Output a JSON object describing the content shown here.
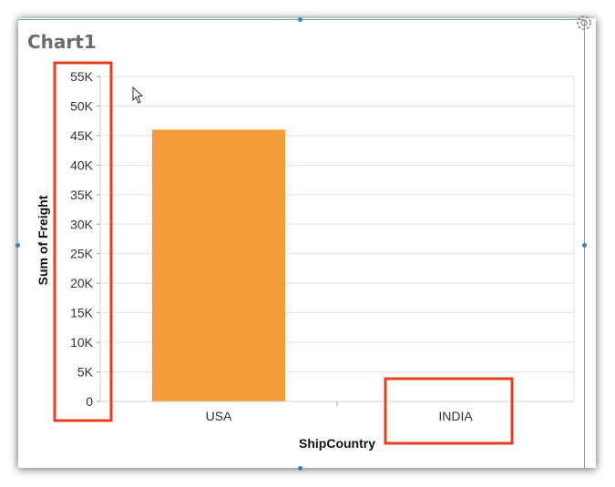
{
  "chart_data": {
    "type": "bar",
    "title": "Chart1",
    "categories": [
      "USA",
      "INDIA"
    ],
    "values": [
      46000,
      0
    ],
    "xlabel": "ShipCountry",
    "ylabel": "Sum of Freight",
    "ylim": [
      0,
      55000
    ],
    "yticks": [
      {
        "value": 0,
        "label": "0"
      },
      {
        "value": 5000,
        "label": "5K"
      },
      {
        "value": 10000,
        "label": "10K"
      },
      {
        "value": 15000,
        "label": "15K"
      },
      {
        "value": 20000,
        "label": "20K"
      },
      {
        "value": 25000,
        "label": "25K"
      },
      {
        "value": 30000,
        "label": "30K"
      },
      {
        "value": 35000,
        "label": "35K"
      },
      {
        "value": 40000,
        "label": "40K"
      },
      {
        "value": 45000,
        "label": "45K"
      },
      {
        "value": 50000,
        "label": "50K"
      },
      {
        "value": 55000,
        "label": "55K"
      }
    ],
    "grid": true,
    "bar_color": "#f39c38",
    "highlight_color": "#e8401e"
  },
  "icons": {
    "settings": "gear-icon",
    "pointer": "mouse-cursor-icon"
  }
}
